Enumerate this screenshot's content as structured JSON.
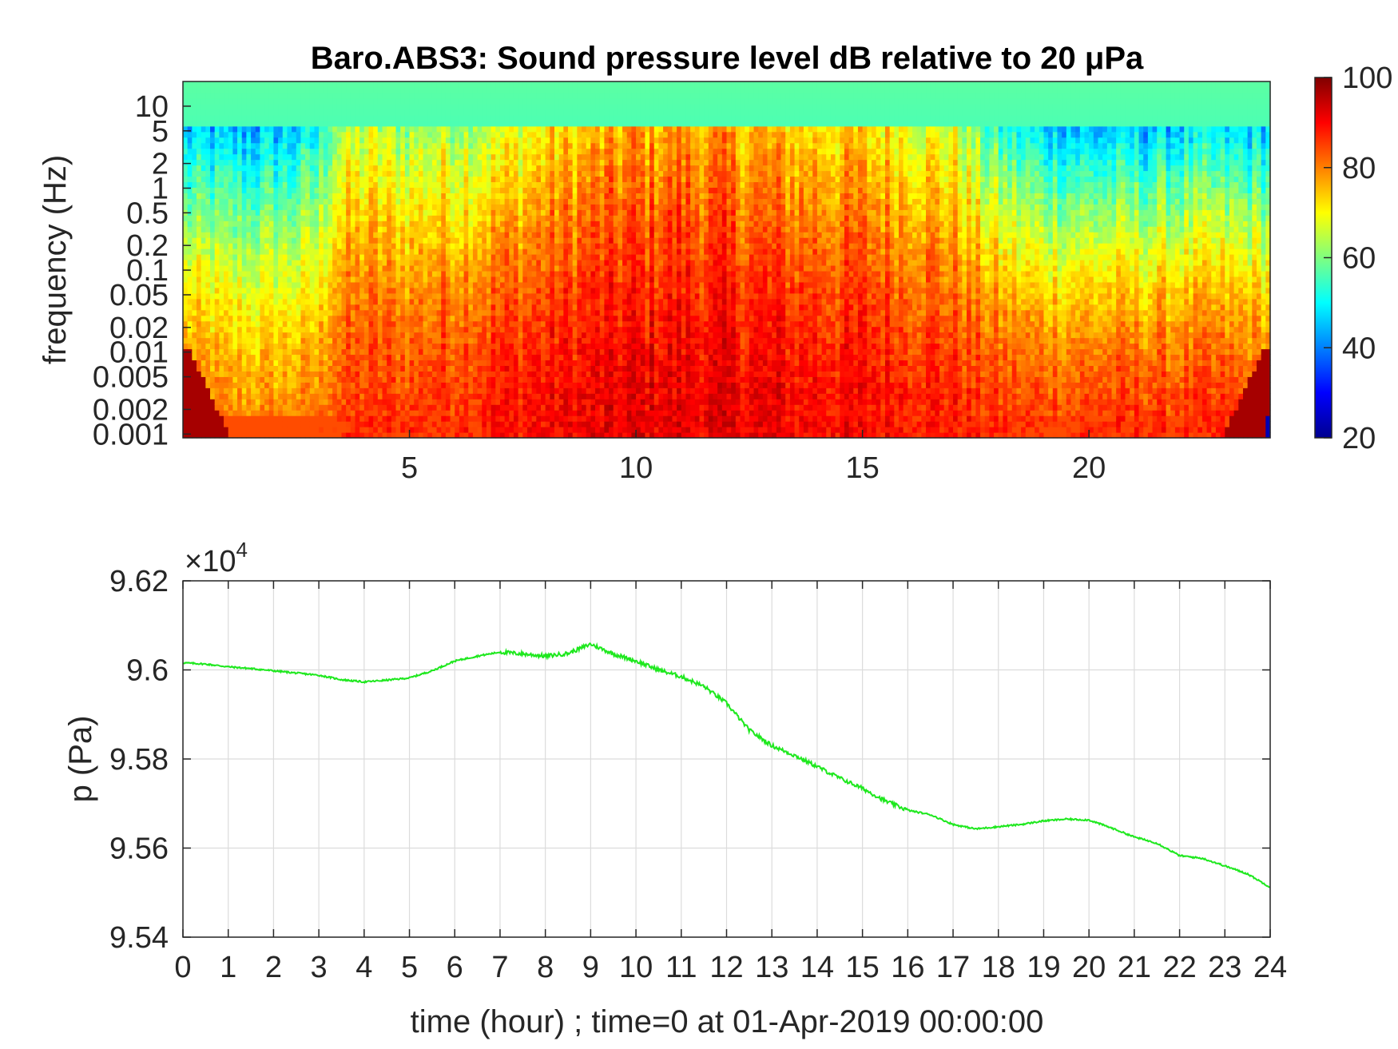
{
  "chart_data": [
    {
      "type": "heatmap",
      "title": "Baro.ABS3: Sound pressure level dB relative to 20 μPa",
      "ylabel": "frequency (Hz)",
      "xlabel": "",
      "y_scale": "log",
      "xlim": [
        0,
        24
      ],
      "ylim": [
        0.0009,
        20
      ],
      "x_ticks": [
        "5",
        "10",
        "15",
        "20"
      ],
      "y_ticks": [
        "0.001",
        "0.002",
        "0.005",
        "0.01",
        "0.02",
        "0.05",
        "0.1",
        "0.2",
        "0.5",
        "1",
        "2",
        "5",
        "10"
      ],
      "colorbar": {
        "range": [
          20,
          100
        ],
        "ticks": [
          "20",
          "40",
          "60",
          "80",
          "100"
        ],
        "colormap": "jet"
      },
      "level_profile": {
        "hours": [
          0,
          1,
          2,
          3,
          3.3,
          4,
          5,
          6,
          7,
          8,
          9,
          10,
          11,
          12,
          13,
          14,
          15,
          16,
          17,
          18,
          19,
          20,
          21,
          22,
          23,
          24
        ],
        "db_at_low_freq": [
          82,
          79,
          79,
          80,
          84,
          86,
          86,
          87,
          89,
          90,
          91,
          92,
          92,
          92,
          91,
          90,
          90,
          89,
          88,
          86,
          85,
          86,
          86,
          86,
          86,
          84
        ],
        "db_at_high_freq": [
          44,
          43,
          44,
          48,
          62,
          64,
          62,
          64,
          66,
          70,
          74,
          76,
          78,
          76,
          74,
          73,
          72,
          70,
          66,
          52,
          46,
          44,
          44,
          46,
          46,
          46
        ]
      },
      "grid": false
    },
    {
      "type": "line",
      "xlabel": "time (hour) ; time=0 at 01-Apr-2019 00:00:00",
      "ylabel": "p (Pa)",
      "exponent_label": "×10",
      "exponent_power": "4",
      "xlim": [
        0,
        24
      ],
      "ylim": [
        9.54,
        9.62
      ],
      "x_ticks": [
        "0",
        "1",
        "2",
        "3",
        "4",
        "5",
        "6",
        "7",
        "8",
        "9",
        "10",
        "11",
        "12",
        "13",
        "14",
        "15",
        "16",
        "17",
        "18",
        "19",
        "20",
        "21",
        "22",
        "23",
        "24"
      ],
      "y_ticks": [
        "9.54",
        "9.56",
        "9.58",
        "9.6",
        "9.62"
      ],
      "grid": true,
      "series": [
        {
          "color": "#1ee81e",
          "x": [
            0,
            0.5,
            1,
            1.5,
            2,
            2.5,
            3,
            3.5,
            4,
            4.5,
            5,
            5.5,
            6,
            6.5,
            7,
            7.5,
            8,
            8.5,
            9,
            9.5,
            10,
            10.5,
            11,
            11.5,
            12,
            12.5,
            13,
            13.5,
            14,
            14.5,
            15,
            15.5,
            16,
            16.5,
            17,
            17.5,
            18,
            18.5,
            19,
            19.5,
            20,
            20.5,
            21,
            21.5,
            22,
            22.5,
            23,
            23.5,
            24
          ],
          "y": [
            9.6016,
            9.6013,
            9.6007,
            9.6003,
            9.5998,
            9.5993,
            9.5988,
            9.5978,
            9.5973,
            9.5977,
            9.5982,
            9.5998,
            9.602,
            9.6031,
            9.604,
            9.6036,
            9.6031,
            9.6037,
            9.6058,
            9.6036,
            9.602,
            9.6,
            9.5985,
            9.5963,
            9.5925,
            9.5865,
            9.583,
            9.5808,
            9.5783,
            9.5757,
            9.5734,
            9.5706,
            9.5685,
            9.5675,
            9.5653,
            9.5643,
            9.5648,
            9.5653,
            9.5661,
            9.5665,
            9.5663,
            9.5645,
            9.5625,
            9.5611,
            9.5583,
            9.5577,
            9.556,
            9.5542,
            9.5512
          ]
        }
      ]
    }
  ]
}
